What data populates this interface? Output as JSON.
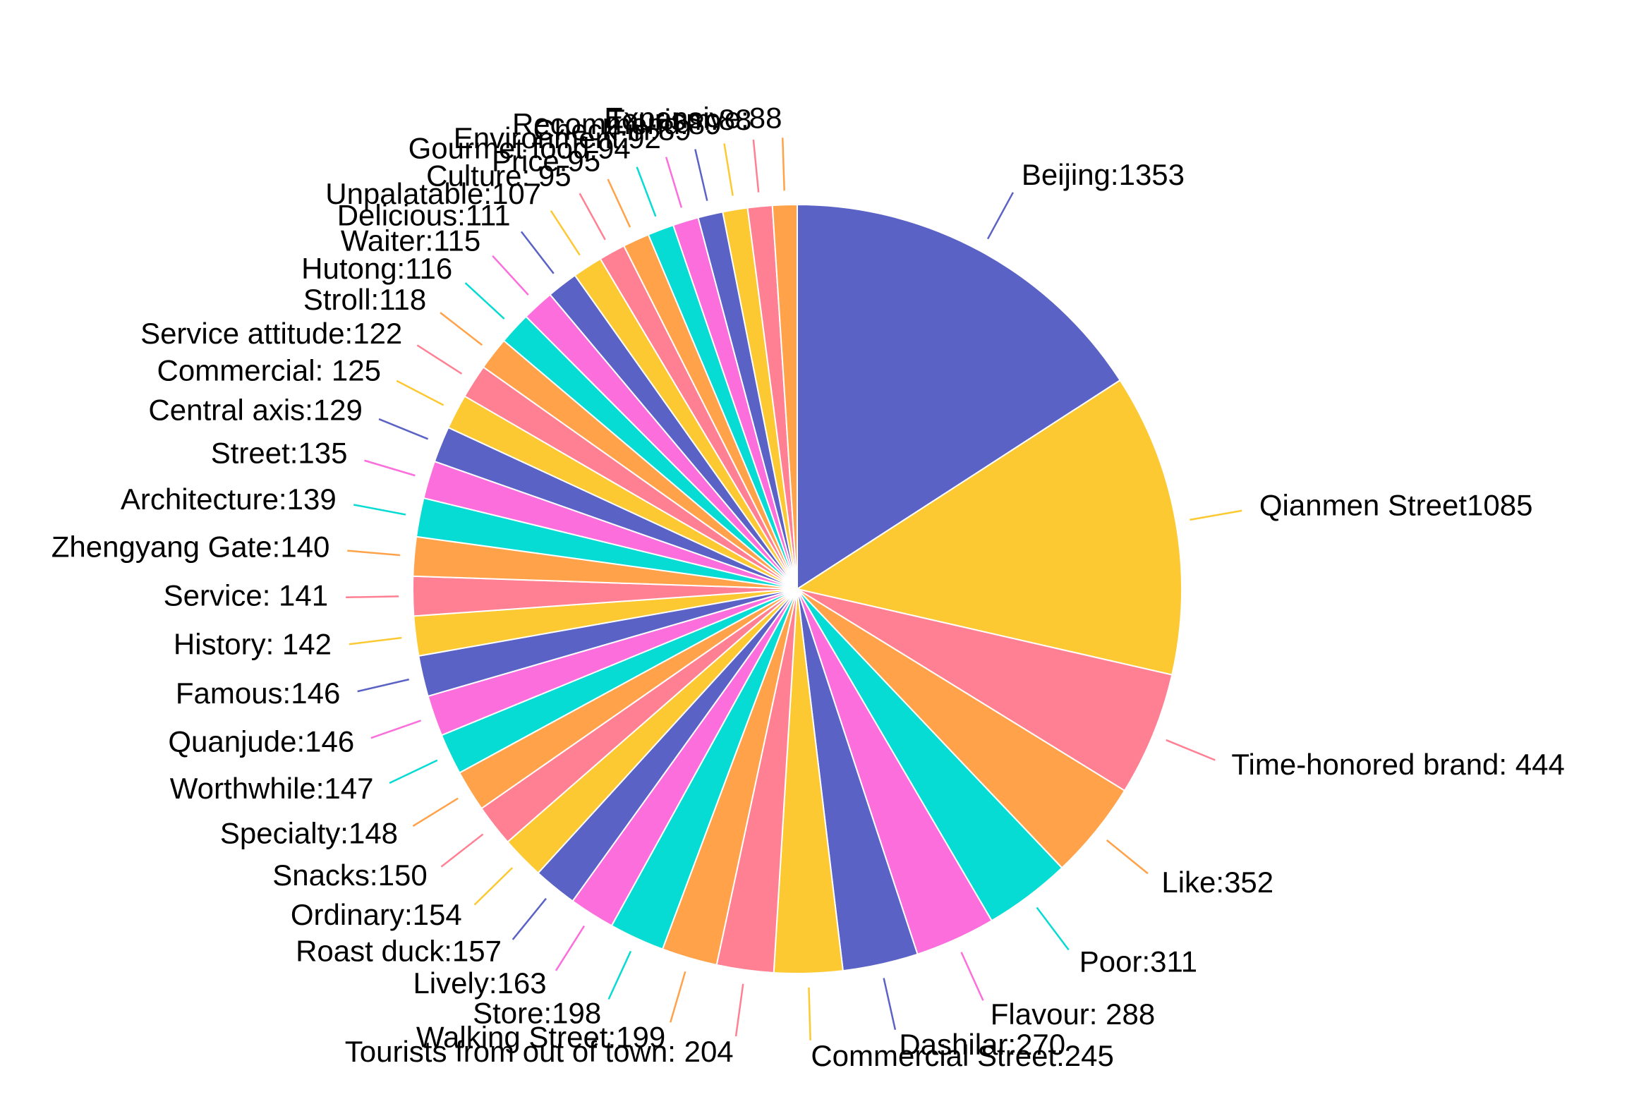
{
  "chart_data": {
    "type": "pie",
    "start_angle_deg": 0,
    "direction": "clockwise",
    "colors": [
      "#5b62c5",
      "#fdc932",
      "#ff8092",
      "#ffa24a",
      "#06dbd4",
      "#fb6edc"
    ],
    "slices": [
      {
        "label": "Beijing:1353",
        "value": 1353
      },
      {
        "label": "Qianmen Street1085",
        "value": 1085
      },
      {
        "label": "Time-honored brand: 444",
        "value": 444
      },
      {
        "label": "Like:352",
        "value": 352
      },
      {
        "label": "Poor:311",
        "value": 311
      },
      {
        "label": "Flavour: 288",
        "value": 288
      },
      {
        "label": "Dashilar:270",
        "value": 270
      },
      {
        "label": "Commercial Street:245",
        "value": 245
      },
      {
        "label": "Tourists from out of town:  204",
        "value": 204
      },
      {
        "label": "Walking Street:199",
        "value": 199
      },
      {
        "label": "Store:198",
        "value": 198
      },
      {
        "label": "Lively:163",
        "value": 163
      },
      {
        "label": "Roast duck:157",
        "value": 157
      },
      {
        "label": "Ordinary:154",
        "value": 154
      },
      {
        "label": "Snacks:150",
        "value": 150
      },
      {
        "label": "Specialty:148",
        "value": 148
      },
      {
        "label": "Worthwhile:147",
        "value": 147
      },
      {
        "label": "Quanjude:146",
        "value": 146
      },
      {
        "label": "Famous:146",
        "value": 146
      },
      {
        "label": "History: 142",
        "value": 142
      },
      {
        "label": "Service: 141",
        "value": 141
      },
      {
        "label": "Zhengyang Gate:140",
        "value": 140
      },
      {
        "label": "Architecture:139",
        "value": 139
      },
      {
        "label": "Street:135",
        "value": 135
      },
      {
        "label": "Central axis:129",
        "value": 129
      },
      {
        "label": "Commercial: 125",
        "value": 125
      },
      {
        "label": "Service attitude:122",
        "value": 122
      },
      {
        "label": "Stroll:118",
        "value": 118
      },
      {
        "label": "Hutong:116",
        "value": 116
      },
      {
        "label": "Waiter:115",
        "value": 115
      },
      {
        "label": "Delicious:111",
        "value": 111
      },
      {
        "label": "Unpalatable:107",
        "value": 107
      },
      {
        "label": "Culture: 95",
        "value": 95
      },
      {
        "label": "Price:95",
        "value": 95
      },
      {
        "label": "Gourmet food:94",
        "value": 94
      },
      {
        "label": "Environment:92",
        "value": 92
      },
      {
        "label": "Check-in:89",
        "value": 89
      },
      {
        "label": "Recommend:89",
        "value": 89
      },
      {
        "label": "Tourism:88",
        "value": 88
      },
      {
        "label": "Expensive:88",
        "value": 88
      }
    ]
  }
}
